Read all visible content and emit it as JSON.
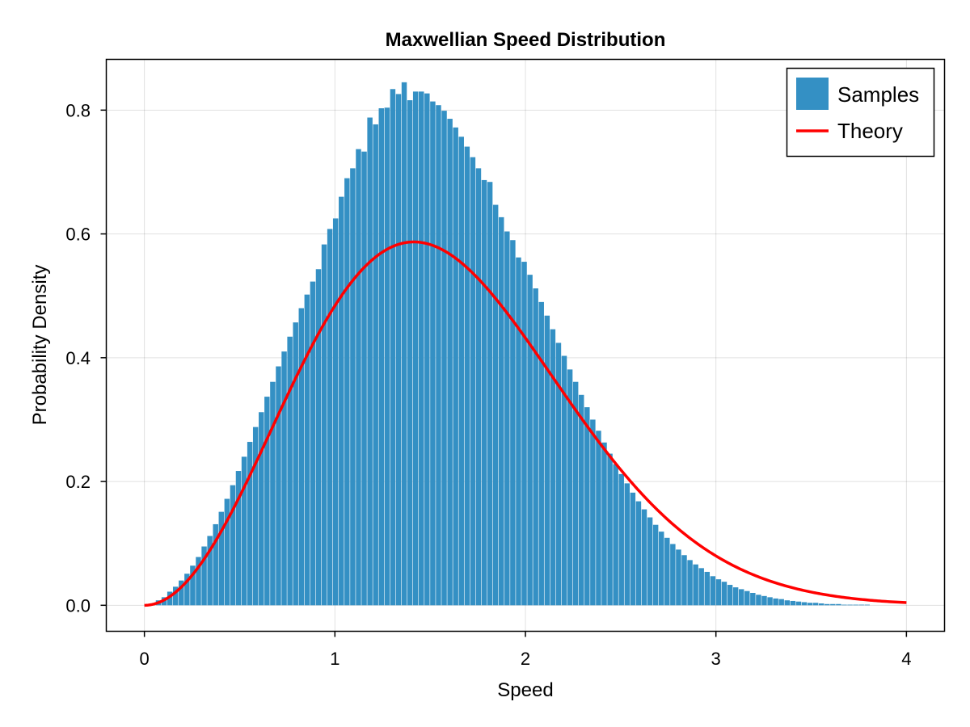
{
  "chart_data": {
    "type": "bar",
    "title": "Maxwellian Speed Distribution",
    "xlabel": "Speed",
    "ylabel": "Probability Density",
    "xlim": [
      -0.2,
      4.2
    ],
    "ylim": [
      -0.042,
      0.882
    ],
    "xticks": [
      0,
      1,
      2,
      3,
      4
    ],
    "yticks": [
      0.0,
      0.2,
      0.4,
      0.6,
      0.8
    ],
    "xtick_labels": [
      "0",
      "1",
      "2",
      "3",
      "4"
    ],
    "ytick_labels": [
      "0.0",
      "0.2",
      "0.4",
      "0.6",
      "0.8"
    ],
    "grid": true,
    "legend_position": "top-right",
    "colors": {
      "histogram": "#3490c4",
      "theory": "#ff0000"
    },
    "series": [
      {
        "name": "Samples",
        "kind": "histogram",
        "bin_start": 0.0,
        "bin_width": 0.03,
        "values": [
          0.0,
          0.002,
          0.008,
          0.013,
          0.022,
          0.03,
          0.04,
          0.051,
          0.064,
          0.078,
          0.095,
          0.112,
          0.131,
          0.151,
          0.172,
          0.194,
          0.217,
          0.24,
          0.264,
          0.288,
          0.312,
          0.337,
          0.361,
          0.386,
          0.41,
          0.434,
          0.457,
          0.48,
          0.502,
          0.523,
          0.543,
          0.583,
          0.608,
          0.625,
          0.66,
          0.69,
          0.706,
          0.737,
          0.733,
          0.788,
          0.777,
          0.803,
          0.804,
          0.834,
          0.826,
          0.845,
          0.816,
          0.83,
          0.83,
          0.827,
          0.814,
          0.808,
          0.799,
          0.786,
          0.772,
          0.757,
          0.741,
          0.724,
          0.706,
          0.687,
          0.684,
          0.647,
          0.627,
          0.604,
          0.59,
          0.562,
          0.555,
          0.534,
          0.512,
          0.49,
          0.468,
          0.446,
          0.424,
          0.403,
          0.381,
          0.361,
          0.34,
          0.32,
          0.3,
          0.282,
          0.263,
          0.245,
          0.228,
          0.212,
          0.197,
          0.182,
          0.168,
          0.155,
          0.142,
          0.13,
          0.119,
          0.109,
          0.099,
          0.09,
          0.081,
          0.073,
          0.066,
          0.06,
          0.054,
          0.047,
          0.042,
          0.038,
          0.033,
          0.029,
          0.026,
          0.023,
          0.02,
          0.017,
          0.015,
          0.013,
          0.011,
          0.01,
          0.008,
          0.007,
          0.006,
          0.005,
          0.004,
          0.004,
          0.003,
          0.002,
          0.002,
          0.002,
          0.001,
          0.001,
          0.001,
          0.001,
          0.001,
          0.0,
          0.0,
          0.0
        ]
      },
      {
        "name": "Theory",
        "kind": "line",
        "formula": "sqrt(2/pi)*v^2*exp(-v^2/2)",
        "x_range": [
          0,
          4
        ]
      }
    ]
  }
}
